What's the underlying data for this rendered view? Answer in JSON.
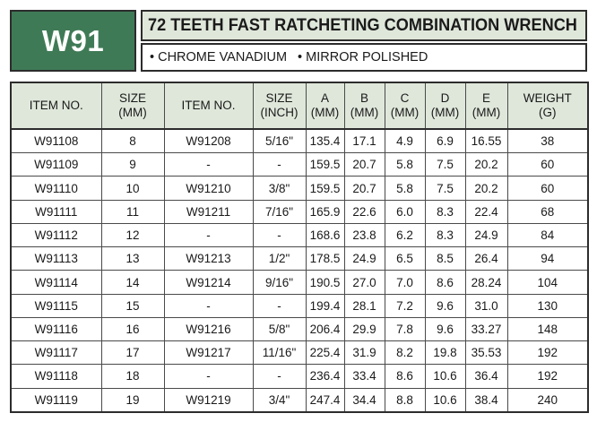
{
  "product_code": "W91",
  "title": "72 TEETH FAST RATCHETING COMBINATION WRENCH",
  "features": [
    "• CHROME VANADIUM",
    "• MIRROR POLISHED"
  ],
  "colors": {
    "code_box": "#3f7a56",
    "header_bg": "#dfe7da",
    "border": "#2c2c2c"
  },
  "table": {
    "headers": [
      [
        "ITEM NO."
      ],
      [
        "SIZE",
        "(MM)"
      ],
      [
        "ITEM NO."
      ],
      [
        "SIZE",
        "(INCH)"
      ],
      [
        "A",
        "(MM)"
      ],
      [
        "B",
        "(MM)"
      ],
      [
        "C",
        "(MM)"
      ],
      [
        "D",
        "(MM)"
      ],
      [
        "E",
        "(MM)"
      ],
      [
        "WEIGHT",
        "(G)"
      ]
    ],
    "rows": [
      [
        "W91108",
        "8",
        "W91208",
        "5/16\"",
        "135.4",
        "17.1",
        "4.9",
        "6.9",
        "16.55",
        "38"
      ],
      [
        "W91109",
        "9",
        "-",
        "-",
        "159.5",
        "20.7",
        "5.8",
        "7.5",
        "20.2",
        "60"
      ],
      [
        "W91110",
        "10",
        "W91210",
        "3/8\"",
        "159.5",
        "20.7",
        "5.8",
        "7.5",
        "20.2",
        "60"
      ],
      [
        "W91111",
        "11",
        "W91211",
        "7/16\"",
        "165.9",
        "22.6",
        "6.0",
        "8.3",
        "22.4",
        "68"
      ],
      [
        "W91112",
        "12",
        "-",
        "-",
        "168.6",
        "23.8",
        "6.2",
        "8.3",
        "24.9",
        "84"
      ],
      [
        "W91113",
        "13",
        "W91213",
        "1/2\"",
        "178.5",
        "24.9",
        "6.5",
        "8.5",
        "26.4",
        "94"
      ],
      [
        "W91114",
        "14",
        "W91214",
        "9/16\"",
        "190.5",
        "27.0",
        "7.0",
        "8.6",
        "28.24",
        "104"
      ],
      [
        "W91115",
        "15",
        "-",
        "-",
        "199.4",
        "28.1",
        "7.2",
        "9.6",
        "31.0",
        "130"
      ],
      [
        "W91116",
        "16",
        "W91216",
        "5/8\"",
        "206.4",
        "29.9",
        "7.8",
        "9.6",
        "33.27",
        "148"
      ],
      [
        "W91117",
        "17",
        "W91217",
        "11/16\"",
        "225.4",
        "31.9",
        "8.2",
        "19.8",
        "35.53",
        "192"
      ],
      [
        "W91118",
        "18",
        "-",
        "-",
        "236.4",
        "33.4",
        "8.6",
        "10.6",
        "36.4",
        "192"
      ],
      [
        "W91119",
        "19",
        "W91219",
        "3/4\"",
        "247.4",
        "34.4",
        "8.8",
        "10.6",
        "38.4",
        "240"
      ]
    ]
  }
}
